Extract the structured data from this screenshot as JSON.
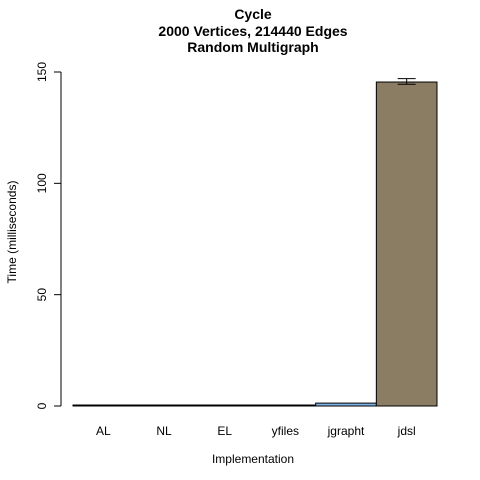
{
  "chart_data": {
    "type": "bar",
    "title": "Cycle",
    "subtitle_lines": [
      "2000 Vertices, 214440 Edges",
      "Random Multigraph"
    ],
    "xlabel": "Implementation",
    "ylabel": "Time (milliseconds)",
    "categories": [
      "AL",
      "NL",
      "EL",
      "yfiles",
      "jgrapht",
      "jdsl"
    ],
    "values": [
      0.3,
      0.3,
      0.3,
      0.1,
      1.3,
      145.5
    ],
    "error_low": [
      null,
      null,
      null,
      null,
      null,
      144.5
    ],
    "error_high": [
      null,
      null,
      null,
      null,
      null,
      147.0
    ],
    "colors": [
      "#b8d3a0",
      "#c6b6d8",
      "#f2b6b0",
      "#f5d28a",
      "#7fb2e5",
      "#8b7d64"
    ],
    "ylim": [
      0,
      150
    ],
    "yticks": [
      0,
      50,
      100,
      150
    ],
    "grid": false,
    "legend": "none"
  }
}
